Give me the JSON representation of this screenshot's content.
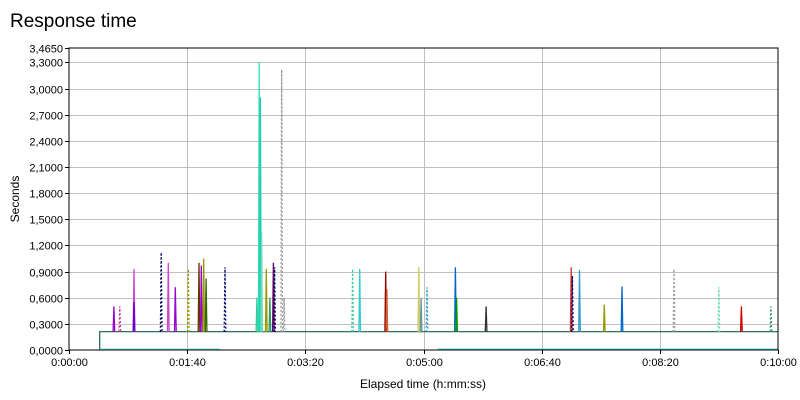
{
  "chart_data": {
    "type": "line",
    "title": "Response time",
    "xlabel": "Elapsed time (h:mm:ss)",
    "ylabel": "Seconds",
    "xlim_seconds": [
      0,
      600
    ],
    "ylim": [
      0,
      3.465
    ],
    "x_ticks": [
      {
        "t": 0,
        "label": "0:00:00"
      },
      {
        "t": 100,
        "label": "0:01:40"
      },
      {
        "t": 200,
        "label": "0:03:20"
      },
      {
        "t": 300,
        "label": "0:05:00"
      },
      {
        "t": 400,
        "label": "0:06:40"
      },
      {
        "t": 500,
        "label": "0:08:20"
      },
      {
        "t": 600,
        "label": "0:10:00"
      }
    ],
    "y_ticks": [
      {
        "v": 0,
        "label": "0,0000"
      },
      {
        "v": 0.3,
        "label": "0,3000"
      },
      {
        "v": 0.6,
        "label": "0,6000"
      },
      {
        "v": 0.9,
        "label": "0,9000"
      },
      {
        "v": 1.2,
        "label": "1,2000"
      },
      {
        "v": 1.5,
        "label": "1,5000"
      },
      {
        "v": 1.8,
        "label": "1,8000"
      },
      {
        "v": 2.1,
        "label": "2,1000"
      },
      {
        "v": 2.4,
        "label": "2,4000"
      },
      {
        "v": 2.7,
        "label": "2,7000"
      },
      {
        "v": 3.0,
        "label": "3,0000"
      },
      {
        "v": 3.3,
        "label": "3,3000"
      },
      {
        "v": 3.465,
        "label": "3,4650"
      }
    ],
    "grid": true,
    "baseline_series": [
      {
        "color": "#1a5e4e",
        "points": [
          [
            26,
            0
          ],
          [
            26,
            0.21
          ],
          [
            600,
            0.21
          ]
        ]
      },
      {
        "color": "#66ddcc",
        "points": [
          [
            26,
            0.01
          ],
          [
            128,
            0.01
          ]
        ]
      },
      {
        "color": "#44cccc",
        "points": [
          [
            312,
            0.01
          ],
          [
            600,
            0.01
          ]
        ]
      }
    ],
    "spikes": [
      {
        "t": 38,
        "peak": 0.5,
        "color": "#9900cc",
        "dashed": false
      },
      {
        "t": 43,
        "peak": 0.5,
        "color": "#cc3399",
        "dashed": true
      },
      {
        "t": 55,
        "peak": 0.93,
        "color": "#cc44cc",
        "dashed": false
      },
      {
        "t": 55,
        "peak": 0.55,
        "color": "#6600cc",
        "dashed": false
      },
      {
        "t": 78,
        "peak": 1.12,
        "color": "#000066",
        "dashed": true
      },
      {
        "t": 84,
        "peak": 1.0,
        "color": "#cc44cc",
        "dashed": false
      },
      {
        "t": 90,
        "peak": 0.72,
        "color": "#9900cc",
        "dashed": false
      },
      {
        "t": 101,
        "peak": 0.93,
        "color": "#999900",
        "dashed": true
      },
      {
        "t": 110,
        "peak": 1.0,
        "color": "#663300",
        "dashed": false
      },
      {
        "t": 112,
        "peak": 0.97,
        "color": "#9900cc",
        "dashed": false
      },
      {
        "t": 114,
        "peak": 1.05,
        "color": "#999900",
        "dashed": false
      },
      {
        "t": 116,
        "peak": 0.82,
        "color": "#336600",
        "dashed": false
      },
      {
        "t": 132,
        "peak": 0.95,
        "color": "#000066",
        "dashed": true
      },
      {
        "t": 159,
        "peak": 0.6,
        "color": "#33cc99",
        "dashed": false
      },
      {
        "t": 161,
        "peak": 3.3,
        "color": "#33ddbb",
        "dashed": false
      },
      {
        "t": 162,
        "peak": 2.9,
        "color": "#22ccaa",
        "dashed": false
      },
      {
        "t": 163,
        "peak": 1.35,
        "color": "#66ddbb",
        "dashed": false
      },
      {
        "t": 167,
        "peak": 0.93,
        "color": "#999900",
        "dashed": false
      },
      {
        "t": 170,
        "peak": 0.6,
        "color": "#339966",
        "dashed": false
      },
      {
        "t": 173,
        "peak": 1.0,
        "color": "#660066",
        "dashed": false
      },
      {
        "t": 174,
        "peak": 0.95,
        "color": "#000066",
        "dashed": true
      },
      {
        "t": 180,
        "peak": 3.22,
        "color": "#999999",
        "dashed": true
      },
      {
        "t": 182,
        "peak": 0.6,
        "color": "#999999",
        "dashed": true
      },
      {
        "t": 240,
        "peak": 0.93,
        "color": "#33cc99",
        "dashed": true
      },
      {
        "t": 246,
        "peak": 0.93,
        "color": "#33cccc",
        "dashed": false
      },
      {
        "t": 268,
        "peak": 0.9,
        "color": "#990000",
        "dashed": false
      },
      {
        "t": 269,
        "peak": 0.7,
        "color": "#cc6633",
        "dashed": false
      },
      {
        "t": 296,
        "peak": 0.95,
        "color": "#cccc66",
        "dashed": false
      },
      {
        "t": 298,
        "peak": 0.6,
        "color": "#669999",
        "dashed": false
      },
      {
        "t": 303,
        "peak": 0.72,
        "color": "#3399cc",
        "dashed": true
      },
      {
        "t": 327,
        "peak": 0.95,
        "color": "#0066cc",
        "dashed": false
      },
      {
        "t": 328,
        "peak": 0.6,
        "color": "#009900",
        "dashed": false
      },
      {
        "t": 353,
        "peak": 0.5,
        "color": "#333333",
        "dashed": false
      },
      {
        "t": 425,
        "peak": 0.95,
        "color": "#cc3333",
        "dashed": false
      },
      {
        "t": 426,
        "peak": 0.85,
        "color": "#000066",
        "dashed": true
      },
      {
        "t": 432,
        "peak": 0.92,
        "color": "#3399cc",
        "dashed": false
      },
      {
        "t": 453,
        "peak": 0.52,
        "color": "#999900",
        "dashed": false
      },
      {
        "t": 468,
        "peak": 0.73,
        "color": "#0066cc",
        "dashed": false
      },
      {
        "t": 512,
        "peak": 0.93,
        "color": "#999999",
        "dashed": true
      },
      {
        "t": 550,
        "peak": 0.72,
        "color": "#66ddbb",
        "dashed": true
      },
      {
        "t": 569,
        "peak": 0.5,
        "color": "#cc0000",
        "dashed": false
      },
      {
        "t": 594,
        "peak": 0.5,
        "color": "#339966",
        "dashed": true
      }
    ]
  }
}
